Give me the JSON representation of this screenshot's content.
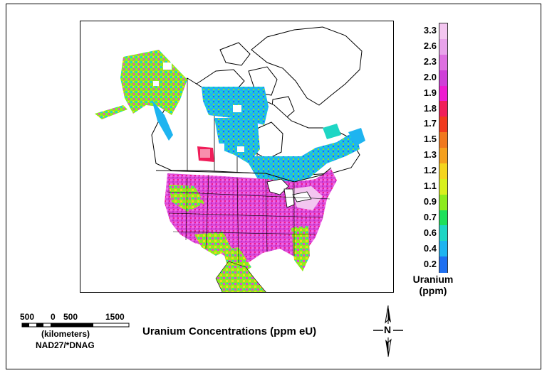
{
  "map": {
    "title": "Uranium Concentrations (ppm eU)",
    "legend": {
      "title_line1": "Uranium",
      "title_line2": "(ppm)",
      "labels": [
        "3.3",
        "2.6",
        "2.3",
        "2.0",
        "1.9",
        "1.8",
        "1.7",
        "1.5",
        "1.3",
        "1.2",
        "1.1",
        "0.9",
        "0.7",
        "0.6",
        "0.4",
        "0.2"
      ],
      "colors": [
        "#f3c6f0",
        "#e8a3ea",
        "#dd6fe0",
        "#cf3fd8",
        "#ee1ad0",
        "#f01e5a",
        "#f03a1e",
        "#f0781e",
        "#f5a01e",
        "#f5d51e",
        "#d8f01e",
        "#8cec1e",
        "#1ee05a",
        "#1ed6c4",
        "#1eb4f0",
        "#1e6ff0"
      ]
    },
    "scale_bar": {
      "labels": [
        "500",
        "0",
        "500",
        "1500"
      ],
      "unit": "(kilometers)",
      "datum": "NAD27/*DNAG"
    },
    "north_arrow": {
      "label": "N"
    }
  }
}
